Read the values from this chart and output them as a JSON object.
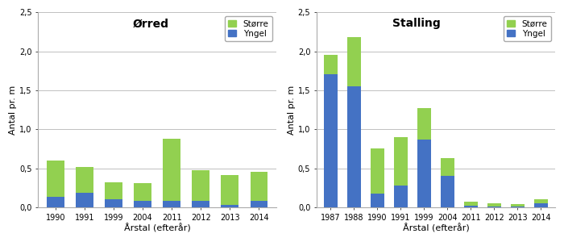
{
  "orred": {
    "title": "Ørred",
    "years": [
      "1990",
      "1991",
      "1999",
      "2004",
      "2011",
      "2012",
      "2013",
      "2014"
    ],
    "stoerre": [
      0.47,
      0.33,
      0.22,
      0.23,
      0.8,
      0.4,
      0.38,
      0.38
    ],
    "yngel": [
      0.13,
      0.19,
      0.1,
      0.08,
      0.08,
      0.08,
      0.03,
      0.08
    ]
  },
  "stalling": {
    "title": "Stalling",
    "years": [
      "1987",
      "1988",
      "1990",
      "1991",
      "1999",
      "2004",
      "2011",
      "2012",
      "2013",
      "2014"
    ],
    "stoerre": [
      0.24,
      0.63,
      0.57,
      0.62,
      0.4,
      0.23,
      0.05,
      0.04,
      0.03,
      0.05
    ],
    "yngel": [
      1.71,
      1.55,
      0.18,
      0.28,
      0.87,
      0.4,
      0.02,
      0.01,
      0.01,
      0.05
    ]
  },
  "color_stoerre": "#92D050",
  "color_yngel": "#4472C4",
  "ylabel": "Antal pr. m",
  "xlabel": "Årstal (efterår)",
  "ylim": [
    0,
    2.5
  ],
  "yticks": [
    0.0,
    0.5,
    1.0,
    1.5,
    2.0,
    2.5
  ],
  "ytick_labels": [
    "0,0",
    "0,5",
    "1,0",
    "1,5",
    "2,0",
    "2,5"
  ],
  "legend_stoerre": "Større",
  "legend_yngel": "Yngel",
  "fig_bg": "#FFFFFF",
  "ax_bg": "#FFFFFF",
  "grid_color": "#C0C0C0",
  "bar_width": 0.6
}
